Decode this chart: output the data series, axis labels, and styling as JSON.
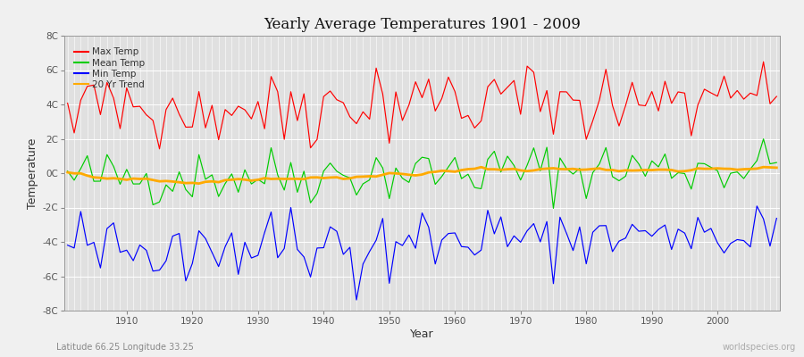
{
  "title": "Yearly Average Temperatures 1901 - 2009",
  "xlabel": "Year",
  "ylabel": "Temperature",
  "start_year": 1901,
  "end_year": 2009,
  "lat_lon": "Latitude 66.25 Longitude 33.25",
  "watermark": "worldspecies.org",
  "ylim": [
    -8,
    8
  ],
  "yticks": [
    -8,
    -6,
    -4,
    -2,
    0,
    2,
    4,
    6,
    8
  ],
  "ytick_labels": [
    "-8C",
    "-6C",
    "-4C",
    "-2C",
    "0C",
    "2C",
    "4C",
    "6C",
    "8C"
  ],
  "xticks": [
    1910,
    1920,
    1930,
    1940,
    1950,
    1960,
    1970,
    1980,
    1990,
    2000
  ],
  "colors": {
    "max": "#ff0000",
    "mean": "#00cc00",
    "min": "#0000ff",
    "trend": "#ffaa00",
    "fig_bg": "#f0f0f0",
    "ax_bg": "#e0e0e0",
    "grid": "#ffffff"
  },
  "legend_labels": [
    "Max Temp",
    "Mean Temp",
    "Min Temp",
    "20 Yr Trend"
  ],
  "legend_colors": [
    "#ff0000",
    "#00cc00",
    "#0000ff",
    "#ffaa00"
  ]
}
